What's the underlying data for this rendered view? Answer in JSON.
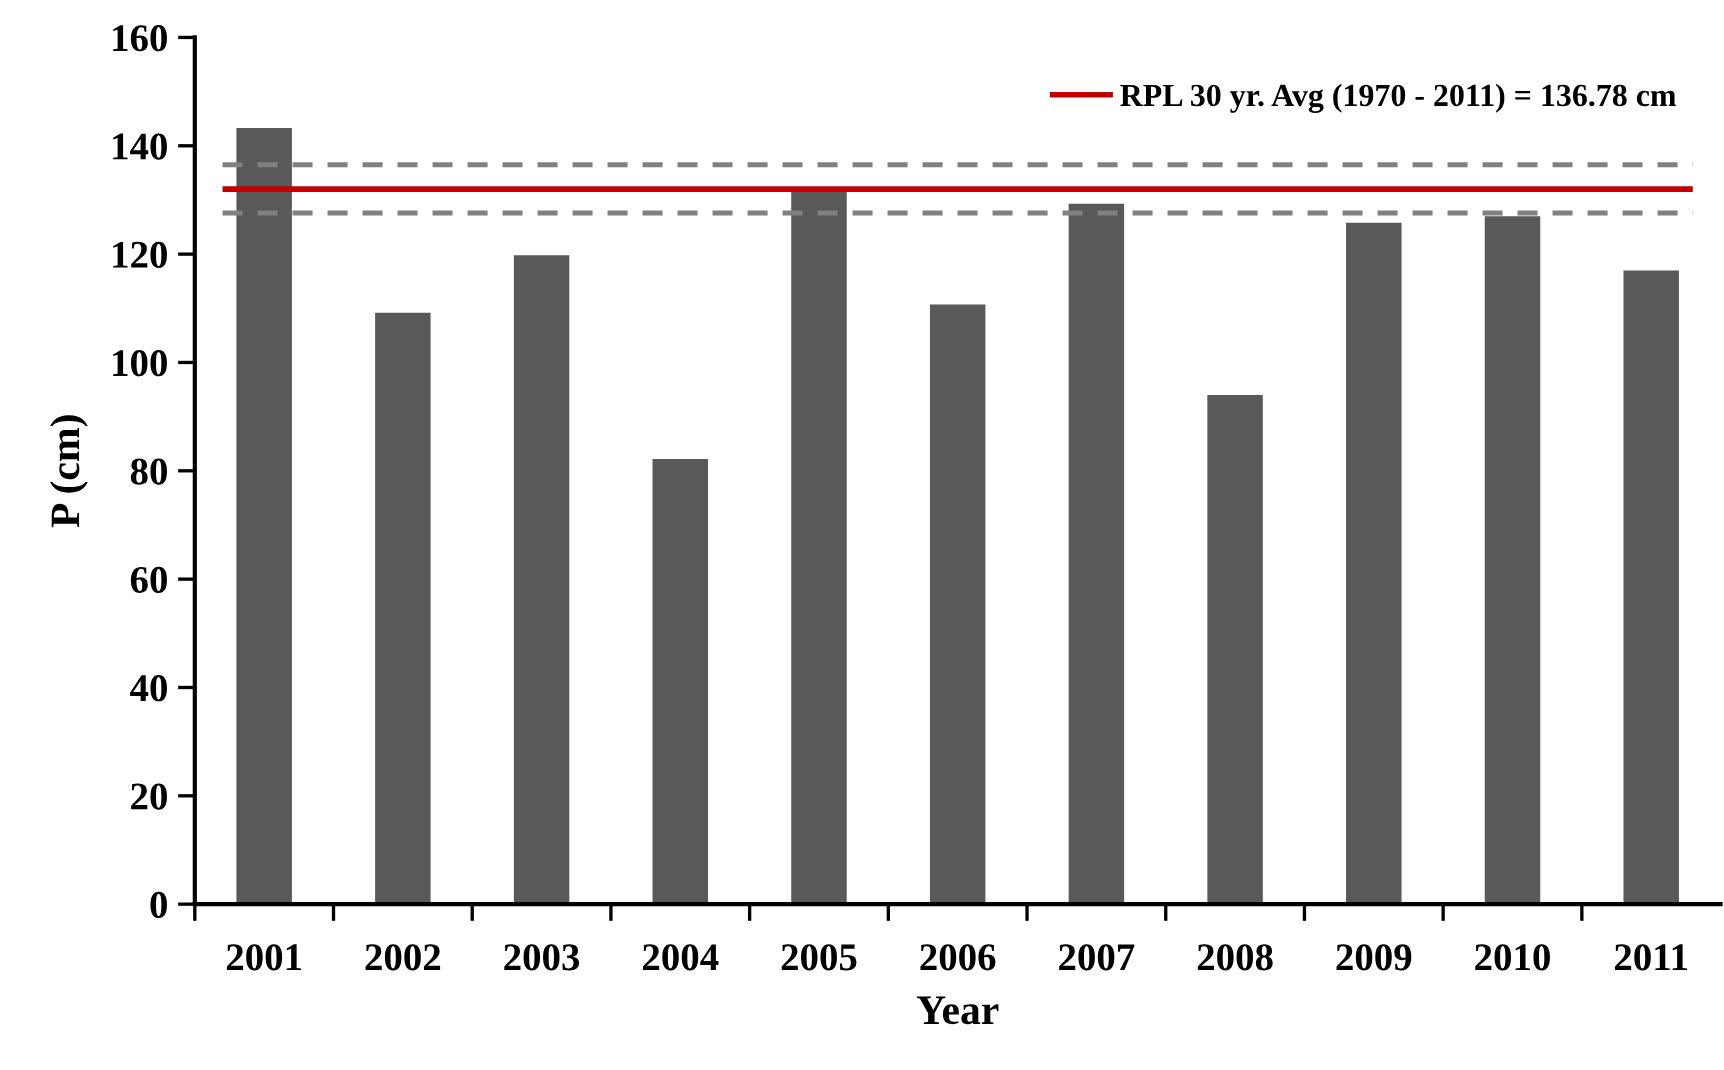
{
  "chart_data": {
    "type": "bar",
    "xlabel": "Year",
    "ylabel": "P (cm)",
    "categories": [
      "2001",
      "2002",
      "2003",
      "2004",
      "2005",
      "2006",
      "2007",
      "2008",
      "2009",
      "2010",
      "2011"
    ],
    "values": [
      143.3,
      109.2,
      119.8,
      82.2,
      132.2,
      110.7,
      129.3,
      94,
      125.8,
      127,
      117
    ],
    "color": "#595959",
    "ylim": [
      0,
      160
    ],
    "yticks": [
      0,
      20,
      40,
      60,
      80,
      100,
      120,
      140,
      160
    ],
    "ref_lines": [
      {
        "axis": "y",
        "value": 132,
        "color": "#c00000",
        "line_style": "solid"
      },
      {
        "axis": "y",
        "value": 136.5,
        "color": "#808080",
        "line_style": "dashed"
      },
      {
        "axis": "y",
        "value": 127.6,
        "color": "#808080",
        "line_style": "dashed"
      }
    ],
    "annotations": [
      "RPL 30 yr. Avg (1970 - 2011) = 136.78 cm"
    ],
    "grid": false
  }
}
